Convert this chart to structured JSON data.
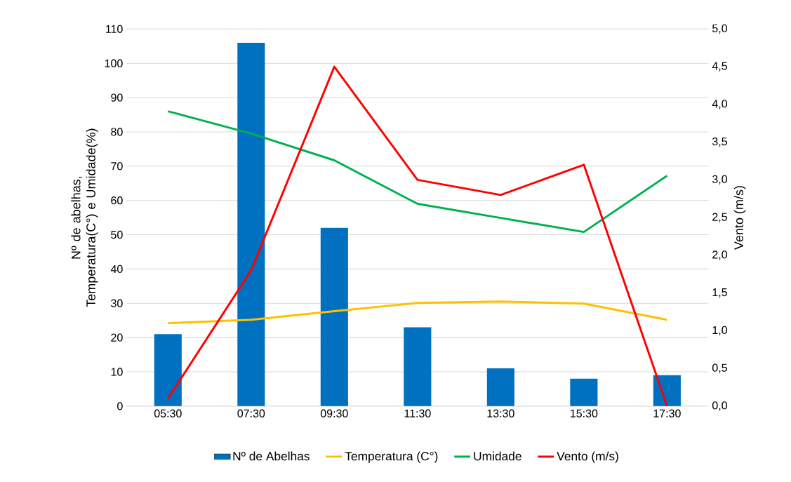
{
  "chart_data": {
    "type": "bar",
    "categories": [
      "05:30",
      "07:30",
      "09:30",
      "11:30",
      "13:30",
      "15:30",
      "17:30"
    ],
    "series": [
      {
        "name": "Nº de Abelhas",
        "color": "#0070c0",
        "values": [
          21,
          106,
          52,
          23,
          11,
          8,
          9
        ]
      },
      {
        "name": "Temperatura (C°)",
        "type": "line",
        "color": "#ffc000",
        "values": [
          24.2,
          25.2,
          27.7,
          30.1,
          30.5,
          29.9,
          25.2
        ]
      },
      {
        "name": "Umidade",
        "type": "line",
        "color": "#00b050",
        "values": [
          86,
          79.5,
          71.7,
          59,
          54.9,
          50.8,
          67.2
        ]
      },
      {
        "name": "Vento (m/s)",
        "type": "line",
        "axis": "y2",
        "color": "#ff0000",
        "values": [
          0.1,
          1.8,
          4.5,
          3.0,
          2.8,
          3.2,
          0.0
        ]
      }
    ],
    "ylabel": "Nº de abelhas, Temperatura(C°) e Umidade(%)",
    "y2label": "Vento (m/s)",
    "ylim": [
      0,
      110
    ],
    "yticks": [
      0,
      10,
      20,
      30,
      40,
      50,
      60,
      70,
      80,
      90,
      100,
      110
    ],
    "y2lim": [
      0,
      5
    ],
    "y2ticks": [
      {
        "value": 0,
        "label": "0,0"
      },
      {
        "value": 0.5,
        "label": "0,5"
      },
      {
        "value": 1,
        "label": "1,0"
      },
      {
        "value": 1.5,
        "label": "1,5"
      },
      {
        "value": 2,
        "label": "2,0"
      },
      {
        "value": 2.5,
        "label": "2,5"
      },
      {
        "value": 3,
        "label": "3,0"
      },
      {
        "value": 3.5,
        "label": "3,5"
      },
      {
        "value": 4,
        "label": "4,0"
      },
      {
        "value": 4.5,
        "label": "4,5"
      },
      {
        "value": 5,
        "label": "5,0"
      }
    ],
    "grid": "y",
    "legend": "bottom",
    "marker": "none",
    "line_style": "solid"
  }
}
